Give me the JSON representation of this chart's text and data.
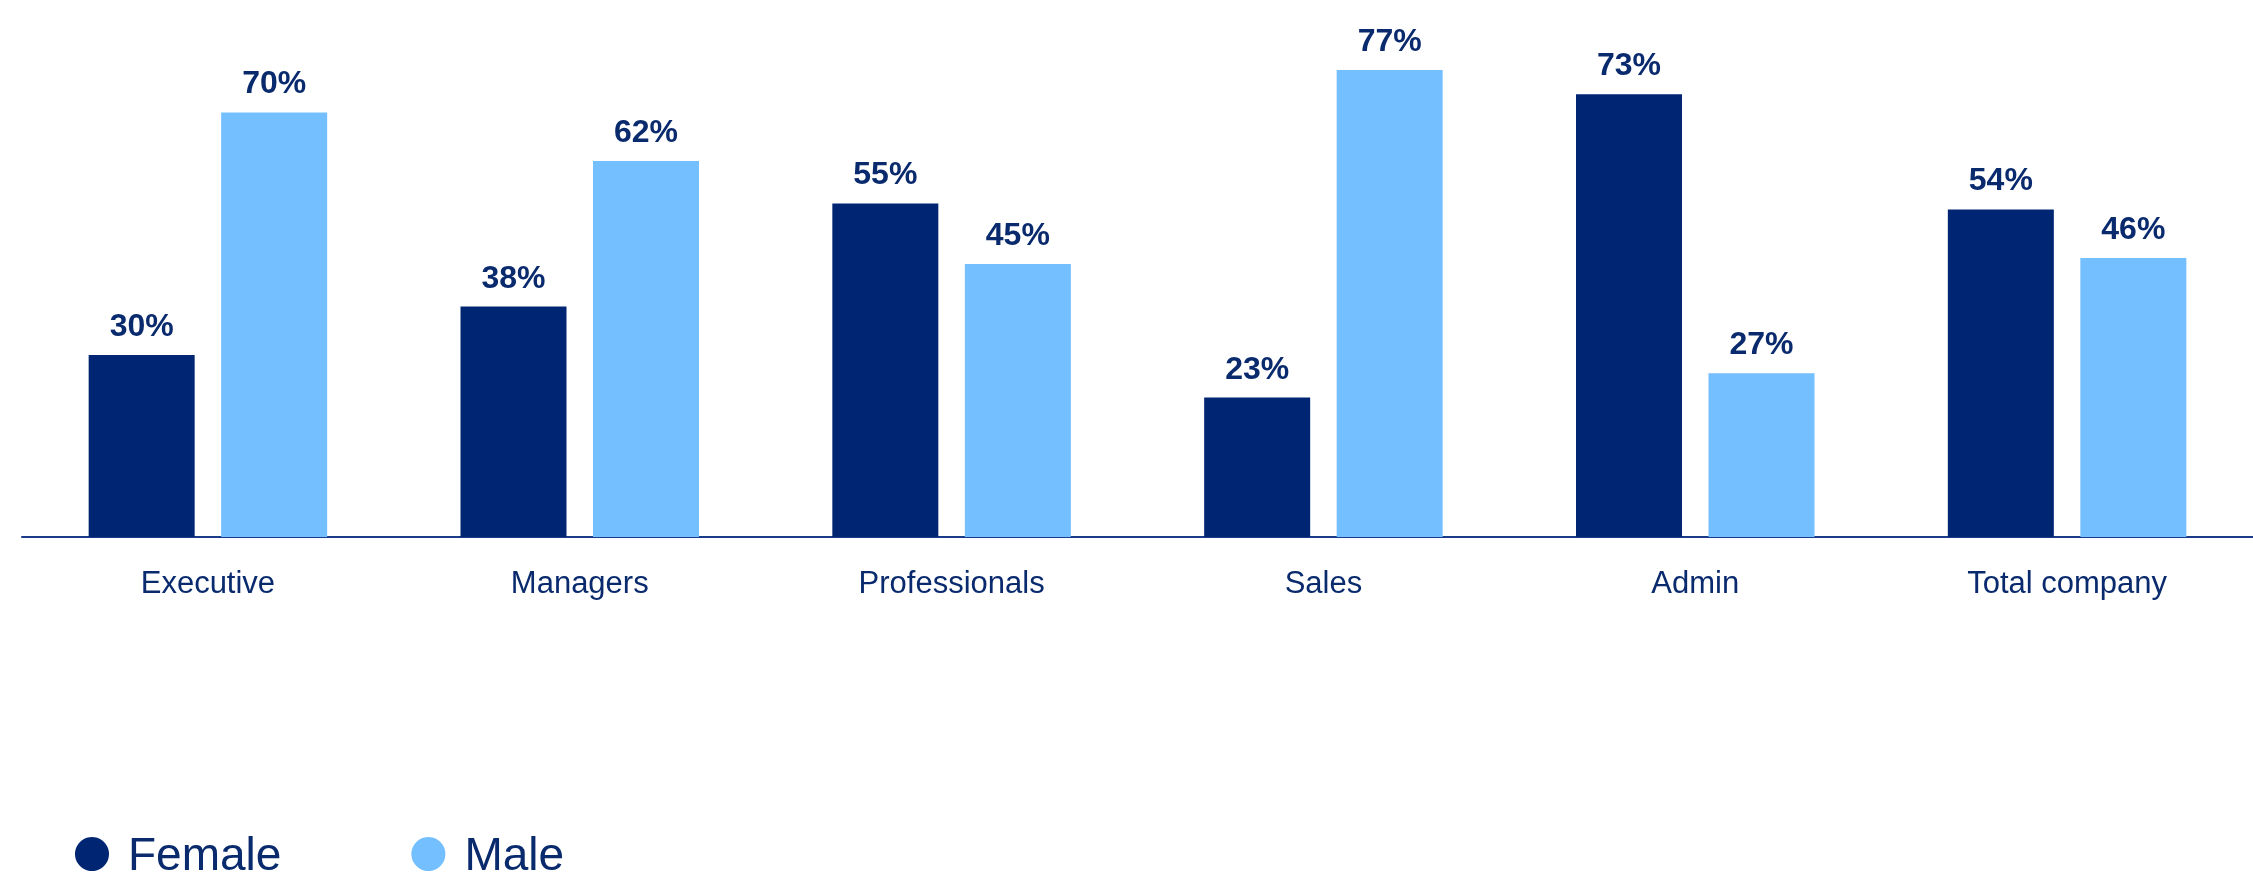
{
  "chart_data": {
    "type": "bar",
    "categories": [
      "Executive",
      "Managers",
      "Professionals",
      "Sales",
      "Admin",
      "Total company"
    ],
    "series": [
      {
        "name": "Female",
        "color": "#002673",
        "values": [
          30,
          38,
          55,
          23,
          73,
          54
        ],
        "value_labels": [
          "30%",
          "38%",
          "55%",
          "23%",
          "73%",
          "54%"
        ]
      },
      {
        "name": "Male",
        "color": "#73bfff",
        "values": [
          70,
          62,
          45,
          77,
          27,
          46
        ],
        "value_labels": [
          "70%",
          "62%",
          "45%",
          "77%",
          "27%",
          "46%"
        ]
      }
    ],
    "legend": "bottom left",
    "grid": false
  }
}
